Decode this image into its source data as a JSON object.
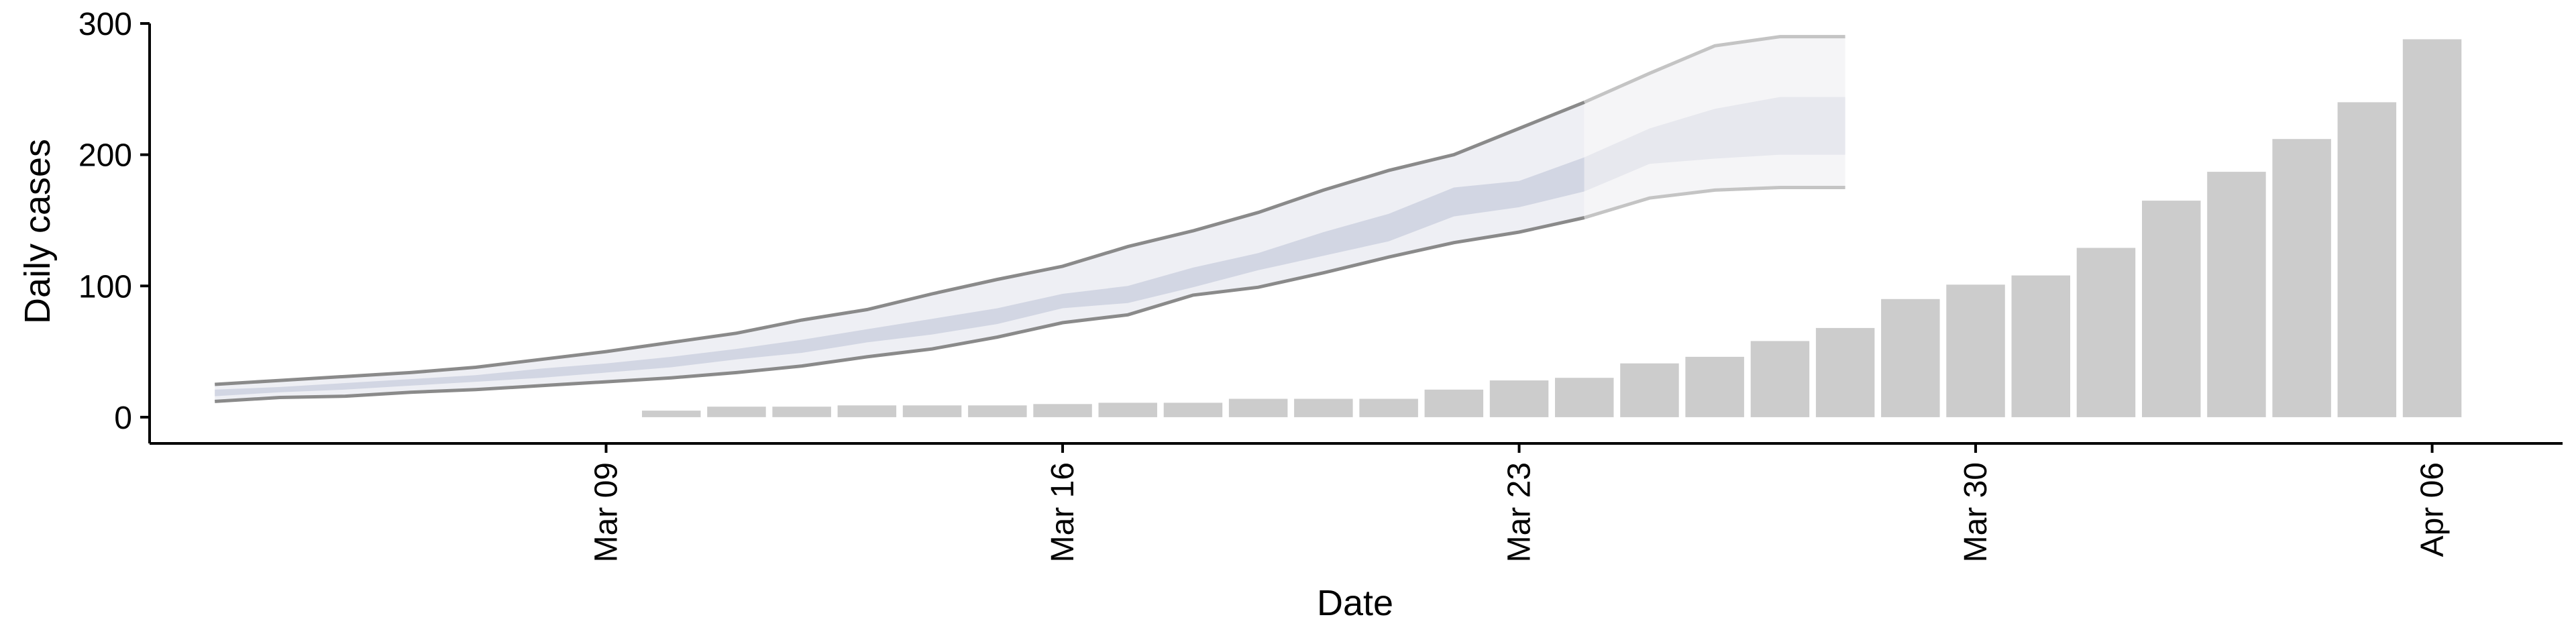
{
  "chart_data": {
    "type": "bar",
    "xlabel": "Date",
    "ylabel": "Daily cases",
    "ylim": [
      -20,
      300
    ],
    "y_ticks": [
      0,
      100,
      200,
      300
    ],
    "x_ticks": [
      {
        "date": "2020-03-09",
        "label": "Mar 09"
      },
      {
        "date": "2020-03-16",
        "label": "Mar 16"
      },
      {
        "date": "2020-03-23",
        "label": "Mar 23"
      },
      {
        "date": "2020-03-30",
        "label": "Mar 30"
      },
      {
        "date": "2020-04-06",
        "label": "Apr 06"
      }
    ],
    "xlim": [
      "2020-03-02",
      "2020-04-08"
    ],
    "grid": false,
    "colors": {
      "bars": "#cccccc",
      "line_fit": "#8a8a8a",
      "line_forecast": "#c4c4c4",
      "band_outer": "#eeeff4",
      "band_inner": "#d2d6e3",
      "band_outer_forecast": "#f5f5f7",
      "band_inner_forecast": "#e7e8ee"
    },
    "bars": {
      "dates": [
        "2020-03-10",
        "2020-03-11",
        "2020-03-12",
        "2020-03-13",
        "2020-03-14",
        "2020-03-15",
        "2020-03-16",
        "2020-03-17",
        "2020-03-18",
        "2020-03-19",
        "2020-03-20",
        "2020-03-21",
        "2020-03-22",
        "2020-03-23",
        "2020-03-24",
        "2020-03-25",
        "2020-03-26",
        "2020-03-27",
        "2020-03-28",
        "2020-03-29",
        "2020-03-30",
        "2020-03-31",
        "2020-04-01",
        "2020-04-02",
        "2020-04-03",
        "2020-04-04",
        "2020-04-05",
        "2020-04-06"
      ],
      "values": [
        5,
        8,
        8,
        9,
        9,
        9,
        10,
        11,
        11,
        14,
        14,
        14,
        21,
        28,
        30,
        41,
        46,
        58,
        68,
        90,
        101,
        108,
        129,
        165,
        187,
        212,
        240,
        288
      ]
    },
    "model_bands": {
      "dates": [
        "2020-03-03",
        "2020-03-04",
        "2020-03-05",
        "2020-03-06",
        "2020-03-07",
        "2020-03-08",
        "2020-03-09",
        "2020-03-10",
        "2020-03-11",
        "2020-03-12",
        "2020-03-13",
        "2020-03-14",
        "2020-03-15",
        "2020-03-16",
        "2020-03-17",
        "2020-03-18",
        "2020-03-19",
        "2020-03-20",
        "2020-03-21",
        "2020-03-22",
        "2020-03-23",
        "2020-03-24",
        "2020-03-25",
        "2020-03-26",
        "2020-03-27",
        "2020-03-28"
      ],
      "fit_until": "2020-03-24",
      "outer_lower": [
        12,
        15,
        16,
        19,
        21,
        24,
        27,
        30,
        34,
        39,
        46,
        52,
        61,
        72,
        78,
        93,
        99,
        110,
        122,
        133,
        141,
        152,
        167,
        173,
        175,
        175
      ],
      "outer_upper": [
        25,
        28,
        31,
        34,
        38,
        44,
        50,
        57,
        64,
        74,
        82,
        94,
        105,
        115,
        130,
        142,
        156,
        173,
        188,
        200,
        220,
        240,
        262,
        283,
        290,
        290
      ],
      "inner_lower": [
        16,
        19,
        21,
        24,
        27,
        30,
        34,
        38,
        44,
        49,
        57,
        63,
        71,
        83,
        87,
        99,
        112,
        123,
        134,
        153,
        160,
        172,
        193,
        197,
        200,
        200
      ],
      "inner_upper": [
        21,
        23,
        26,
        29,
        32,
        37,
        41,
        46,
        52,
        59,
        67,
        75,
        83,
        94,
        100,
        114,
        125,
        141,
        155,
        175,
        180,
        198,
        220,
        235,
        244,
        244
      ]
    }
  }
}
